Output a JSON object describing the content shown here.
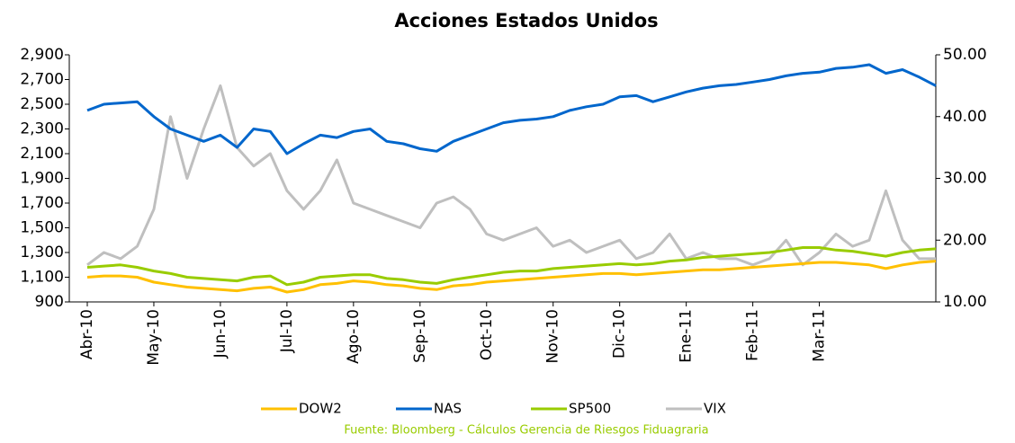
{
  "chart_data": {
    "type": "line",
    "title": "Acciones Estados Unidos",
    "source": "Fuente: Bloomberg - Cálculos Gerencia de Riesgos Fiduagraria",
    "categories": [
      "Abr-10",
      null,
      null,
      null,
      "May-10",
      null,
      null,
      null,
      "Jun-10",
      null,
      null,
      null,
      "Jul-10",
      null,
      null,
      null,
      "Ago-10",
      null,
      null,
      null,
      "Sep-10",
      null,
      null,
      null,
      "Oct-10",
      null,
      null,
      null,
      "Nov-10",
      null,
      null,
      null,
      "Dic-10",
      null,
      null,
      null,
      "Ene-11",
      null,
      null,
      null,
      "Feb-11",
      null,
      null,
      null,
      "Mar-11",
      null,
      null,
      null,
      null,
      null,
      null,
      null
    ],
    "ylim": [
      900,
      2900
    ],
    "yticks": [
      900,
      {
        "value": 1100,
        "label": "1,100"
      },
      {
        "value": 1300,
        "label": "1,300"
      },
      {
        "value": 1500,
        "label": "1,500"
      },
      {
        "value": 1700,
        "label": "1,700"
      },
      {
        "value": 1900,
        "label": "1,900"
      },
      {
        "value": 2100,
        "label": "2,100"
      },
      {
        "value": 2300,
        "label": "2,300"
      },
      {
        "value": 2500,
        "label": "2,500"
      },
      {
        "value": 2700,
        "label": "2,700"
      },
      {
        "value": 2900,
        "label": "2,900"
      }
    ],
    "y2lim": [
      10,
      50
    ],
    "y2ticks": [
      {
        "value": 10,
        "label": "10.00"
      },
      {
        "value": 20,
        "label": "20.00"
      },
      {
        "value": 30,
        "label": "30.00"
      },
      {
        "value": 40,
        "label": "40.00"
      },
      {
        "value": 50,
        "label": "50.00"
      }
    ],
    "series": [
      {
        "name": "DOW2",
        "color": "#ffc000",
        "values": [
          1100,
          1110,
          1110,
          1100,
          1060,
          1040,
          1020,
          1010,
          1000,
          990,
          1010,
          1020,
          980,
          1000,
          1040,
          1050,
          1070,
          1060,
          1040,
          1030,
          1010,
          1000,
          1030,
          1040,
          1060,
          1070,
          1080,
          1090,
          1100,
          1110,
          1120,
          1130,
          1130,
          1120,
          1130,
          1140,
          1150,
          1160,
          1160,
          1170,
          1180,
          1190,
          1200,
          1210,
          1220,
          1220,
          1210,
          1200,
          1170,
          1200,
          1220,
          1230
        ]
      },
      {
        "name": "NAS",
        "color": "#0066cc",
        "values": [
          2450,
          2500,
          2510,
          2520,
          2400,
          2300,
          2250,
          2200,
          2250,
          2150,
          2300,
          2280,
          2100,
          2180,
          2250,
          2230,
          2280,
          2300,
          2200,
          2180,
          2140,
          2120,
          2200,
          2250,
          2300,
          2350,
          2370,
          2380,
          2400,
          2450,
          2480,
          2500,
          2560,
          2570,
          2520,
          2560,
          2600,
          2630,
          2650,
          2660,
          2680,
          2700,
          2730,
          2750,
          2760,
          2790,
          2800,
          2820,
          2750,
          2780,
          2720,
          2650
        ]
      },
      {
        "name": "SP500",
        "color": "#99cc00",
        "values": [
          1180,
          1190,
          1200,
          1180,
          1150,
          1130,
          1100,
          1090,
          1080,
          1070,
          1100,
          1110,
          1040,
          1060,
          1100,
          1110,
          1120,
          1120,
          1090,
          1080,
          1060,
          1050,
          1080,
          1100,
          1120,
          1140,
          1150,
          1150,
          1170,
          1180,
          1190,
          1200,
          1210,
          1200,
          1210,
          1230,
          1240,
          1260,
          1270,
          1280,
          1290,
          1300,
          1320,
          1340,
          1340,
          1320,
          1310,
          1290,
          1270,
          1300,
          1320,
          1330
        ]
      },
      {
        "name": "VIX",
        "color": "#bfbfbf",
        "axis": "y2",
        "values": [
          16,
          18,
          17,
          19,
          25,
          40,
          30,
          38,
          45,
          35,
          32,
          34,
          28,
          25,
          28,
          33,
          26,
          25,
          24,
          23,
          22,
          26,
          27,
          25,
          21,
          20,
          21,
          22,
          19,
          20,
          18,
          19,
          20,
          17,
          18,
          21,
          17,
          18,
          17,
          17,
          16,
          17,
          20,
          16,
          18,
          21,
          19,
          20,
          28,
          20,
          17,
          17
        ]
      }
    ]
  }
}
